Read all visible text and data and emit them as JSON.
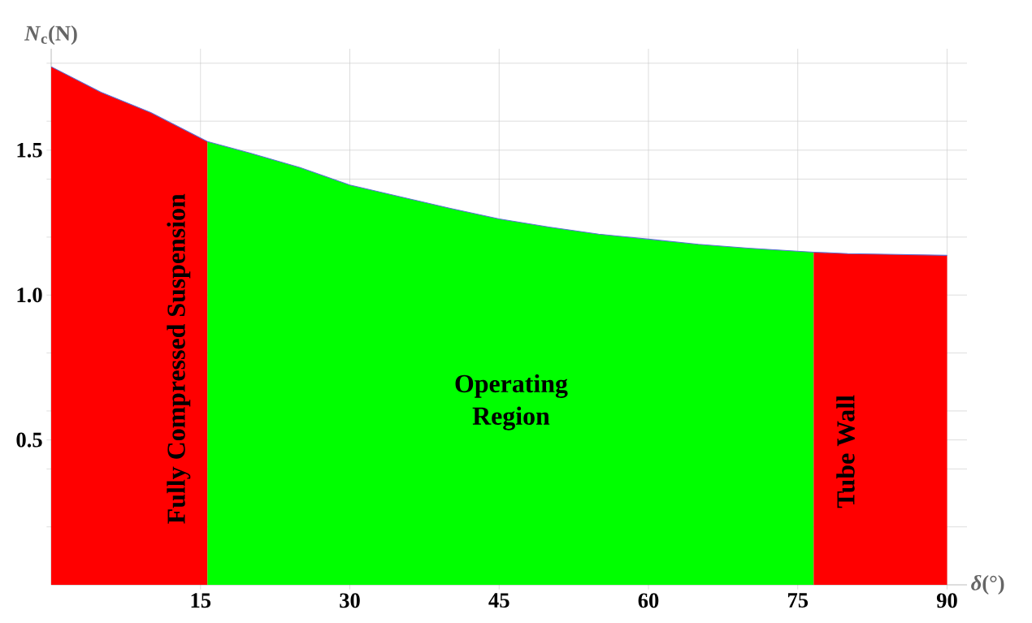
{
  "chart_data": {
    "type": "area",
    "xlabel": "*δ*(°)",
    "ylabel": "*N*$_{c}$(N)",
    "xlim": [
      0,
      92
    ],
    "ylim": [
      0,
      1.85
    ],
    "xticks": [
      15,
      30,
      45,
      60,
      75,
      90
    ],
    "yticks": [
      {
        "value": 0.2,
        "label": null
      },
      {
        "value": 0.4,
        "label": null
      },
      {
        "value": 0.5,
        "label": "0.5"
      },
      {
        "value": 0.6,
        "label": null
      },
      {
        "value": 0.8,
        "label": null
      },
      {
        "value": 1.0,
        "label": "1.0"
      },
      {
        "value": 1.2,
        "label": null
      },
      {
        "value": 1.4,
        "label": null
      },
      {
        "value": 1.5,
        "label": "1.5"
      },
      {
        "value": 1.6,
        "label": null
      },
      {
        "value": 1.8,
        "label": null
      }
    ],
    "grid": true,
    "series": [
      {
        "color": "#ff0000",
        "x": [
          0,
          5,
          10,
          15.7
        ],
        "values": [
          1.788,
          1.7,
          1.63,
          1.53
        ]
      },
      {
        "color": "#00ff00",
        "x": [
          15.7,
          20,
          25,
          30,
          35,
          40,
          45,
          50,
          55,
          60,
          65,
          70,
          76.6
        ],
        "values": [
          1.53,
          1.49,
          1.44,
          1.38,
          1.34,
          1.3,
          1.263,
          1.235,
          1.21,
          1.193,
          1.175,
          1.162,
          1.148
        ]
      },
      {
        "color": "#ff0000",
        "x": [
          76.6,
          80,
          85,
          90
        ],
        "values": [
          1.148,
          1.143,
          1.14,
          1.137
        ]
      },
      {
        "type": "line",
        "color": "#5b6fd6",
        "x": [
          0,
          5,
          10,
          15.7,
          20,
          25,
          30,
          35,
          40,
          45,
          50,
          55,
          60,
          65,
          70,
          76.6,
          80,
          85,
          90
        ],
        "values": [
          1.788,
          1.7,
          1.63,
          1.53,
          1.49,
          1.44,
          1.38,
          1.34,
          1.3,
          1.263,
          1.235,
          1.21,
          1.193,
          1.175,
          1.162,
          1.148,
          1.143,
          1.14,
          1.137
        ]
      }
    ],
    "annotations": [
      "Fully Compressed Suspension",
      "Operating Region",
      "Tube Wall"
    ]
  }
}
